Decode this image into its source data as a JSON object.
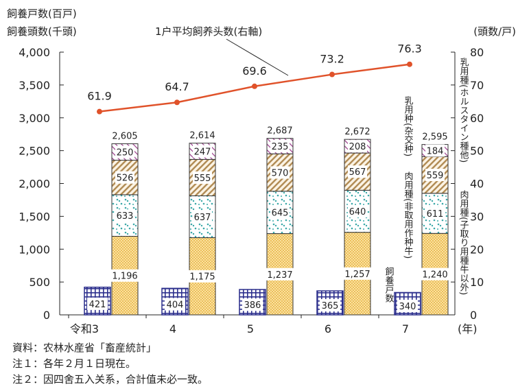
{
  "chart_data": {
    "type": "bar",
    "left_axis_titles": [
      "飼養戸数(百戸)",
      "飼養頭数(千頭)"
    ],
    "right_axis_title": "(頭数/戸)",
    "x_unit": "(年)",
    "categories": [
      "令和3",
      "4",
      "5",
      "6",
      "7"
    ],
    "ylim_left": [
      0,
      4000
    ],
    "yticks_left": [
      "0",
      "500",
      "1,000",
      "1,500",
      "2,000",
      "2,500",
      "3,000",
      "3,500",
      "4,000"
    ],
    "ylim_right": [
      0,
      80
    ],
    "yticks_right": [
      "0",
      "10",
      "20",
      "30",
      "40",
      "50",
      "60",
      "70",
      "80"
    ],
    "households": {
      "name": "飼養戸数",
      "values": [
        421,
        404,
        386,
        365,
        340
      ],
      "labels": [
        "421",
        "404",
        "386",
        "365",
        "340"
      ]
    },
    "stacks": [
      {
        "name": "肉用種(子取り用種牛以外)",
        "values": [
          1196,
          1175,
          1237,
          1257,
          1240
        ],
        "labels": [
          "1,196",
          "1,175",
          "1,237",
          "1,257",
          "1,240"
        ]
      },
      {
        "name": "肉用種(非取用作种牛)",
        "values": [
          633,
          637,
          645,
          640,
          611
        ],
        "labels": [
          "633",
          "637",
          "645",
          "640",
          "611"
        ]
      },
      {
        "name": "乳用种(杂交种)",
        "values": [
          526,
          555,
          570,
          567,
          559
        ],
        "labels": [
          "526",
          "555",
          "570",
          "567",
          "559"
        ]
      },
      {
        "name": "乳用種(ホルスタイン種他)",
        "values": [
          250,
          247,
          235,
          208,
          184
        ],
        "labels": [
          "250",
          "247",
          "235",
          "208",
          "184"
        ]
      }
    ],
    "totals": {
      "values": [
        2605,
        2614,
        2687,
        2672,
        2595
      ],
      "labels": [
        "2,605",
        "2,614",
        "2,687",
        "2,672",
        "2,595"
      ]
    },
    "line": {
      "name": "1户平均飼养头数(右軸)",
      "values": [
        61.9,
        64.7,
        69.6,
        73.2,
        76.3
      ],
      "labels": [
        "61.9",
        "64.7",
        "69.6",
        "73.2",
        "76.3"
      ],
      "color": "#e0522a"
    },
    "grid": false,
    "colors": {
      "households": "#2b2e8c",
      "beef_other": "#f3c24d",
      "beef_non": "#3aa8a8",
      "crossbred": "#b08a52",
      "holstein": "#9a3a8a"
    }
  },
  "notes": [
    "資料：农林水産省「畜産統計」",
    "注１：各年２月１日現在。",
    "注２：因四舍五入关系，合計值未必一致。"
  ]
}
